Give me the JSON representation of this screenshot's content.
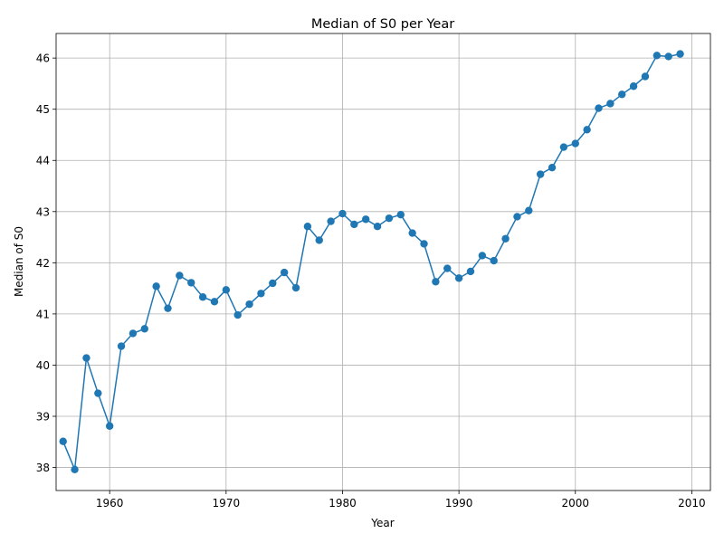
{
  "chart_data": {
    "type": "line",
    "title": "Median of S0 per Year",
    "xlabel": "Year",
    "ylabel": "Median of S0",
    "xlim": [
      1955.4,
      2011.6
    ],
    "ylim": [
      37.55,
      46.48
    ],
    "xticks": [
      1960,
      1970,
      1980,
      1990,
      2000,
      2010
    ],
    "yticks": [
      38,
      39,
      40,
      41,
      42,
      43,
      44,
      45,
      46
    ],
    "grid": true,
    "markers": true,
    "color": "#1f77b4",
    "series": [
      {
        "x": [
          1956,
          1957,
          1958,
          1959,
          1960,
          1961,
          1962,
          1963,
          1964,
          1965,
          1966,
          1967,
          1968,
          1969,
          1970,
          1971,
          1972,
          1973,
          1974,
          1975,
          1976,
          1977,
          1978,
          1979,
          1980,
          1981,
          1982,
          1983,
          1984,
          1985,
          1986,
          1987,
          1988,
          1989,
          1990,
          1991,
          1992,
          1993,
          1994,
          1995,
          1996,
          1997,
          1998,
          1999,
          2000,
          2001,
          2002,
          2003,
          2004,
          2005,
          2006,
          2007,
          2008,
          2009
        ],
        "values": [
          38.51,
          37.96,
          40.14,
          39.45,
          38.81,
          40.37,
          40.62,
          40.71,
          41.54,
          41.11,
          41.75,
          41.61,
          41.33,
          41.24,
          41.47,
          40.98,
          41.19,
          41.4,
          41.6,
          41.81,
          41.51,
          42.71,
          42.44,
          42.81,
          42.96,
          42.75,
          42.85,
          42.71,
          42.87,
          42.94,
          42.58,
          42.37,
          41.63,
          41.89,
          41.7,
          41.83,
          42.14,
          42.04,
          42.47,
          42.9,
          43.02,
          43.73,
          43.86,
          44.26,
          44.33,
          44.6,
          45.02,
          45.11,
          45.29,
          45.45,
          45.64,
          46.05,
          46.03,
          46.08
        ]
      }
    ]
  }
}
